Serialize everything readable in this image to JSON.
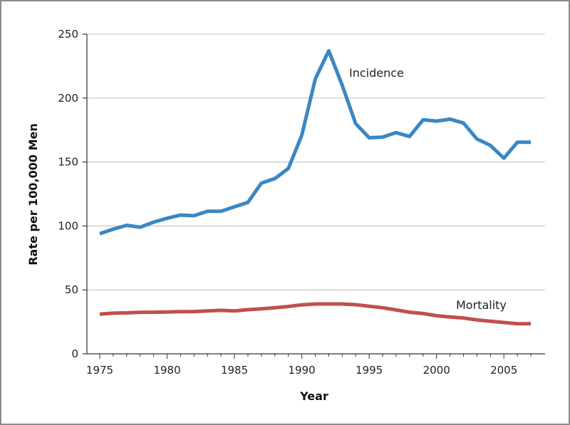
{
  "chart_data": {
    "type": "line",
    "title": "",
    "xlabel": "Year",
    "ylabel": "Rate per 100,000 Men",
    "xlim": [
      1975,
      2007
    ],
    "ylim": [
      0,
      250
    ],
    "xticks": [
      1975,
      1980,
      1985,
      1990,
      1995,
      2000,
      2005
    ],
    "yticks": [
      0,
      50,
      100,
      150,
      200,
      250
    ],
    "grid": "horizontal",
    "legend": "none (series labeled inline)",
    "x": [
      1975,
      1976,
      1977,
      1978,
      1979,
      1980,
      1981,
      1982,
      1983,
      1984,
      1985,
      1986,
      1987,
      1988,
      1989,
      1990,
      1991,
      1992,
      1993,
      1994,
      1995,
      1996,
      1997,
      1998,
      1999,
      2000,
      2001,
      2002,
      2003,
      2004,
      2005,
      2006,
      2007
    ],
    "series": [
      {
        "name": "Incidence",
        "color": "#3a87c4",
        "values": [
          94,
          97.5,
          100.5,
          99,
          103,
          106,
          108.5,
          108,
          111.5,
          111.5,
          115,
          118.5,
          133.5,
          137,
          145,
          171,
          215,
          237,
          210,
          180,
          169,
          169.5,
          173,
          170,
          183,
          182,
          183.5,
          180.5,
          168,
          163,
          153,
          165.5,
          165.5
        ]
      },
      {
        "name": "Mortality",
        "color": "#c0504d",
        "values": [
          31,
          31.8,
          32,
          32.5,
          32.5,
          32.7,
          33,
          33,
          33.5,
          34,
          33.5,
          34.5,
          35.2,
          36,
          37,
          38.3,
          39,
          39,
          39,
          38.4,
          37.2,
          36,
          34.3,
          32.5,
          31.5,
          29.8,
          28.8,
          28,
          26.5,
          25.5,
          24.5,
          23.5,
          23.5
        ]
      }
    ]
  }
}
